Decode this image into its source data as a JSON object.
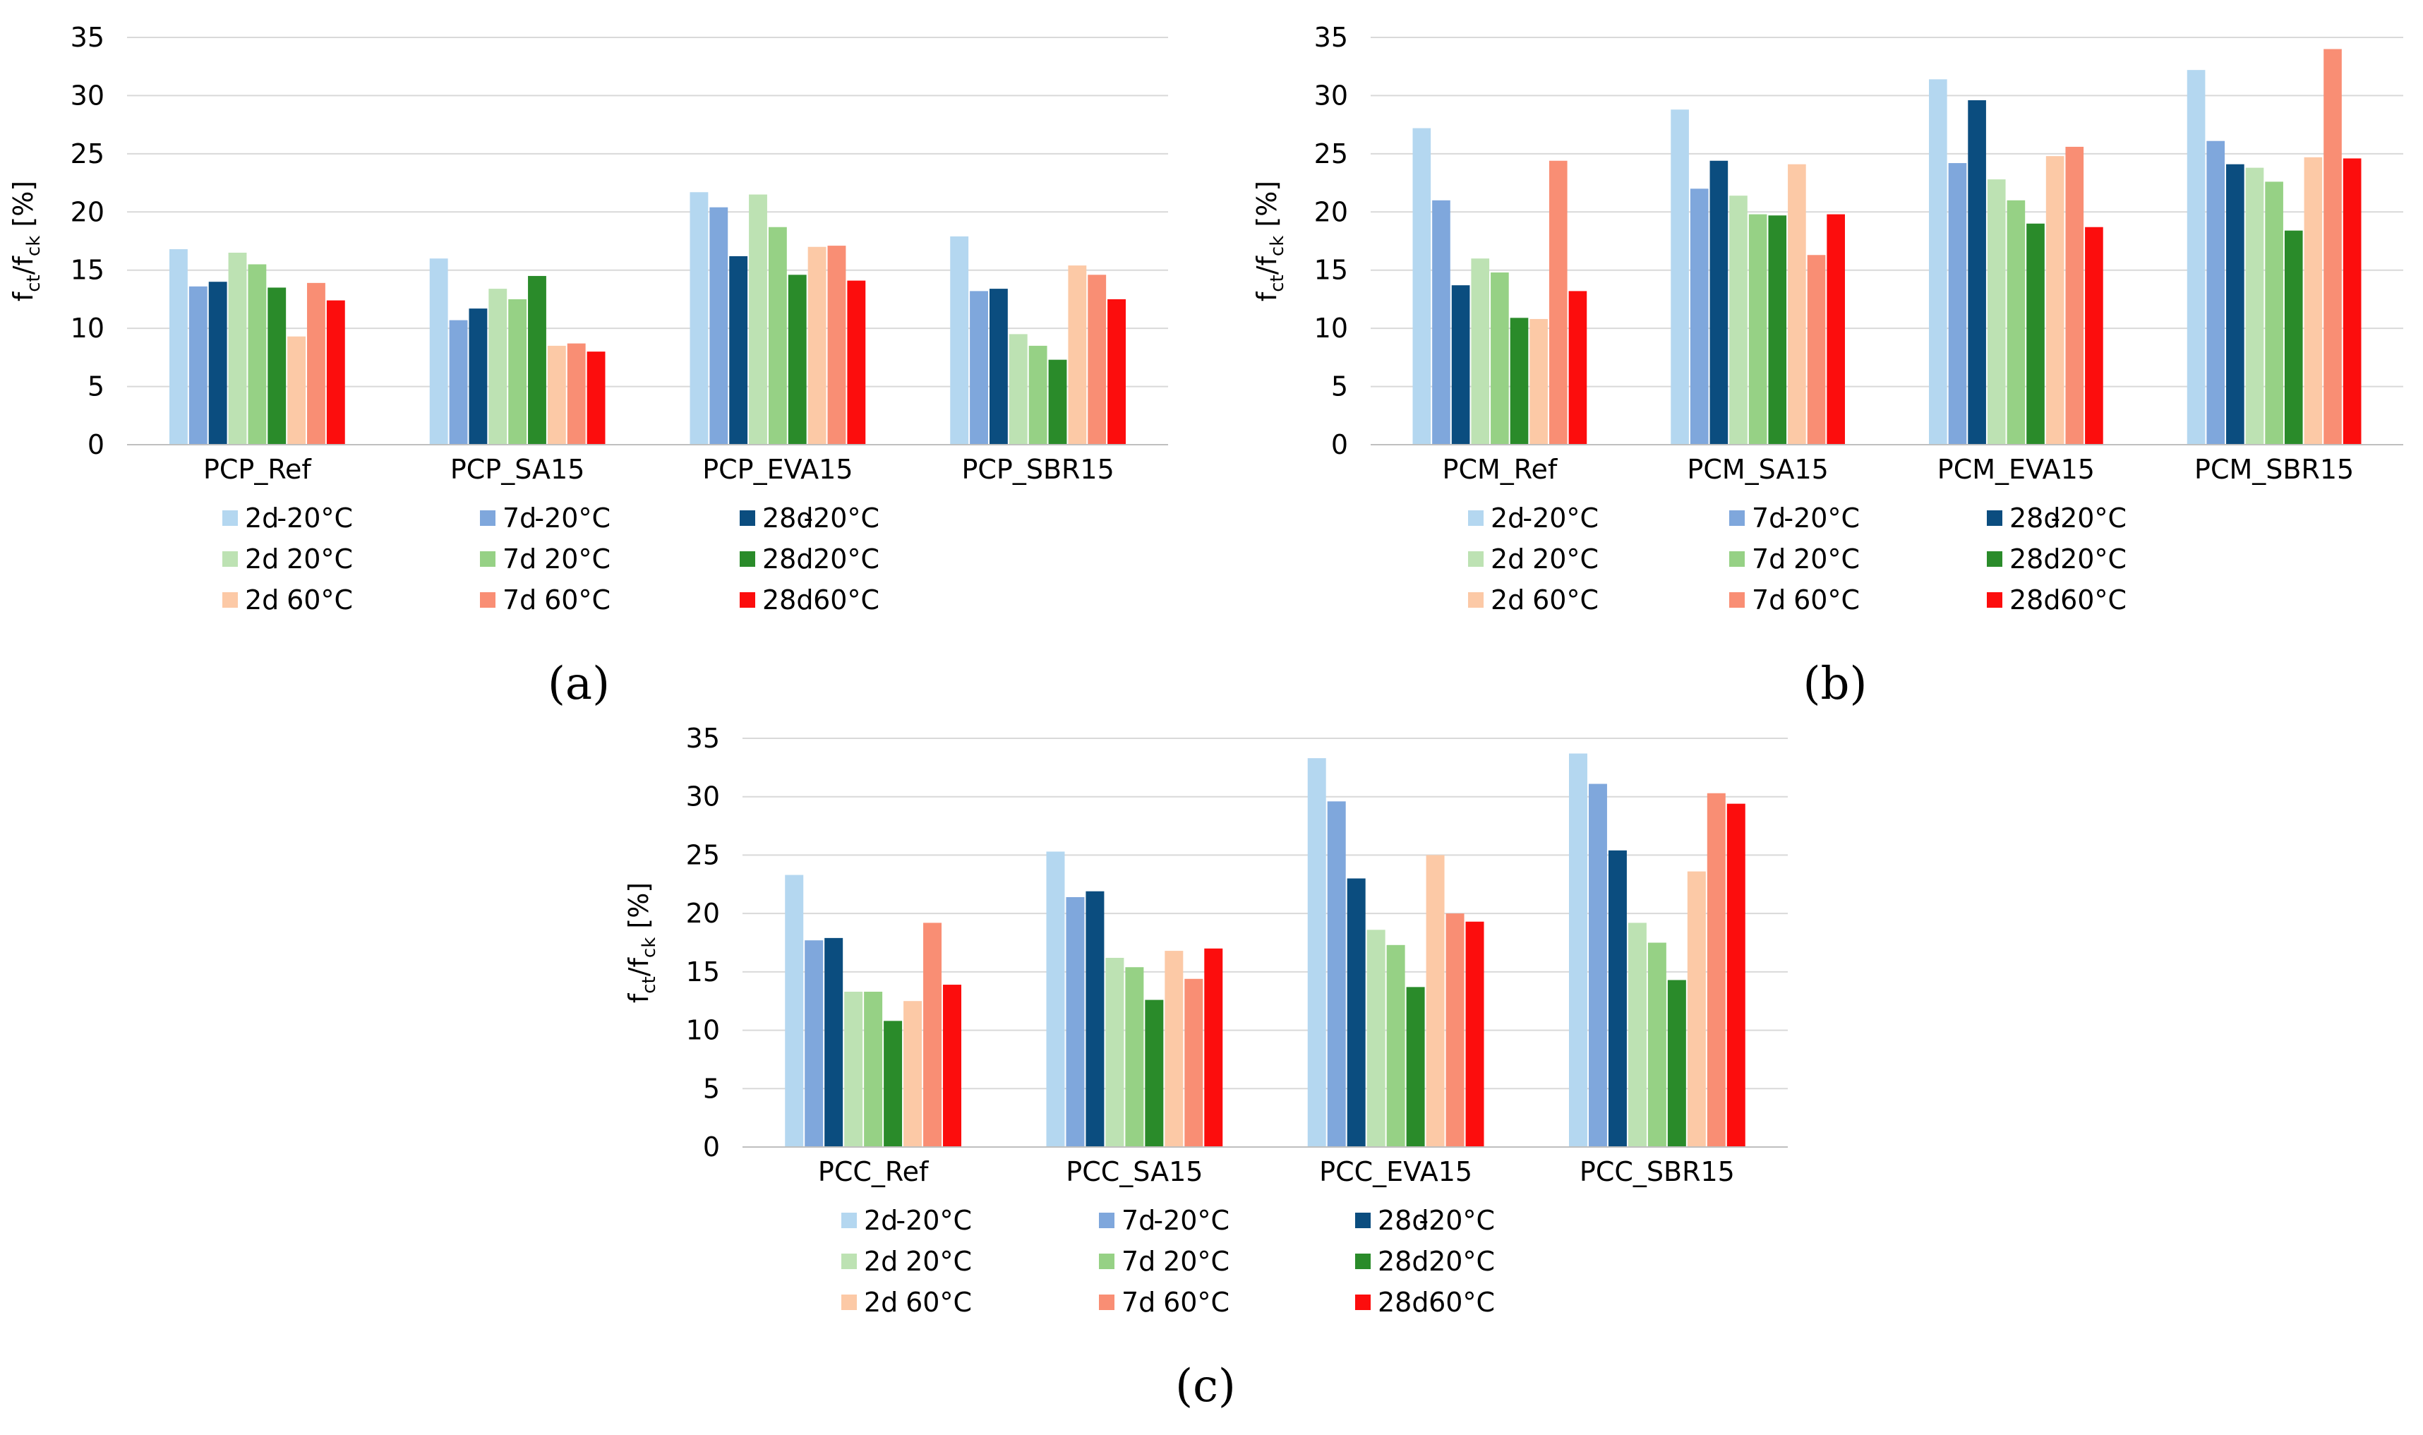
{
  "legend_entries": [
    {
      "age": "2d",
      "temp": "-20°C",
      "color": "#b4d7f0"
    },
    {
      "age": "7d",
      "temp": "-20°C",
      "color": "#7fa7dc"
    },
    {
      "age": "28d",
      "temp": "-20°C",
      "color": "#0b4d7f"
    },
    {
      "age": "2d",
      "temp": "20°C",
      "color": "#bde2b3"
    },
    {
      "age": "7d",
      "temp": "20°C",
      "color": "#96d185"
    },
    {
      "age": "28d",
      "temp": "20°C",
      "color": "#2a8b2a"
    },
    {
      "age": "2d",
      "temp": "60°C",
      "color": "#fcc9a6"
    },
    {
      "age": "7d",
      "temp": "60°C",
      "color": "#f98e74"
    },
    {
      "age": "28d",
      "temp": "60°C",
      "color": "#fc0d0d"
    }
  ],
  "chart_data": [
    {
      "id": "a",
      "type": "bar",
      "panel_label": "(a)",
      "ylabel": "fct/fck [%]",
      "ylabel_main": "f",
      "ylabel_sub1": "ct",
      "ylabel_mid": "/f",
      "ylabel_sub2": "ck",
      "ylabel_unit": " [%]",
      "ylim": [
        0,
        35
      ],
      "yticks": [
        "0",
        "5",
        "10",
        "15",
        "20",
        "25",
        "30",
        "35"
      ],
      "categories": [
        "PCP_Ref",
        "PCP_SA15",
        "PCP_EVA15",
        "PCP_SBR15"
      ],
      "series": [
        {
          "name": "2d -20°C",
          "values": [
            16.8,
            16.0,
            21.7,
            17.9
          ]
        },
        {
          "name": "7d -20°C",
          "values": [
            13.6,
            10.7,
            20.4,
            13.2
          ]
        },
        {
          "name": "28d -20°C",
          "values": [
            14.0,
            11.7,
            16.2,
            13.4
          ]
        },
        {
          "name": "2d 20°C",
          "values": [
            16.5,
            13.4,
            21.5,
            9.5
          ]
        },
        {
          "name": "7d 20°C",
          "values": [
            15.5,
            12.5,
            18.7,
            8.5
          ]
        },
        {
          "name": "28d 20°C",
          "values": [
            13.5,
            14.5,
            14.6,
            7.3
          ]
        },
        {
          "name": "2d 60°C",
          "values": [
            9.3,
            8.5,
            17.0,
            15.4
          ]
        },
        {
          "name": "7d 60°C",
          "values": [
            13.9,
            8.7,
            17.1,
            14.6
          ]
        },
        {
          "name": "28d 60°C",
          "values": [
            12.4,
            8.0,
            14.1,
            12.5
          ]
        }
      ]
    },
    {
      "id": "b",
      "type": "bar",
      "panel_label": "(b)",
      "ylabel": "fct/fck [%]",
      "ylabel_main": "f",
      "ylabel_sub1": "ct",
      "ylabel_mid": "/f",
      "ylabel_sub2": "ck",
      "ylabel_unit": " [%]",
      "ylim": [
        0,
        35
      ],
      "yticks": [
        "0",
        "5",
        "10",
        "15",
        "20",
        "25",
        "30",
        "35"
      ],
      "categories": [
        "PCM_Ref",
        "PCM_SA15",
        "PCM_EVA15",
        "PCM_SBR15"
      ],
      "series": [
        {
          "name": "2d -20°C",
          "values": [
            27.2,
            28.8,
            31.4,
            32.2
          ]
        },
        {
          "name": "7d -20°C",
          "values": [
            21.0,
            22.0,
            24.2,
            26.1
          ]
        },
        {
          "name": "28d -20°C",
          "values": [
            13.7,
            24.4,
            29.6,
            24.1
          ]
        },
        {
          "name": "2d 20°C",
          "values": [
            16.0,
            21.4,
            22.8,
            23.8
          ]
        },
        {
          "name": "7d 20°C",
          "values": [
            14.8,
            19.8,
            21.0,
            22.6
          ]
        },
        {
          "name": "28d 20°C",
          "values": [
            10.9,
            19.7,
            19.0,
            18.4
          ]
        },
        {
          "name": "2d 60°C",
          "values": [
            10.8,
            24.1,
            24.8,
            24.7
          ]
        },
        {
          "name": "7d 60°C",
          "values": [
            24.4,
            16.3,
            25.6,
            34.0
          ]
        },
        {
          "name": "28d 60°C",
          "values": [
            13.2,
            19.8,
            18.7,
            24.6
          ]
        }
      ]
    },
    {
      "id": "c",
      "type": "bar",
      "panel_label": "(c)",
      "ylabel": "fct/fck [%]",
      "ylabel_main": "f",
      "ylabel_sub1": "ct",
      "ylabel_mid": "/f",
      "ylabel_sub2": "ck",
      "ylabel_unit": " [%]",
      "ylim": [
        0,
        35
      ],
      "yticks": [
        "0",
        "5",
        "10",
        "15",
        "20",
        "25",
        "30",
        "35"
      ],
      "categories": [
        "PCC_Ref",
        "PCC_SA15",
        "PCC_EVA15",
        "PCC_SBR15"
      ],
      "series": [
        {
          "name": "2d -20°C",
          "values": [
            23.3,
            25.3,
            33.3,
            33.7
          ]
        },
        {
          "name": "7d -20°C",
          "values": [
            17.7,
            21.4,
            29.6,
            31.1
          ]
        },
        {
          "name": "28d -20°C",
          "values": [
            17.9,
            21.9,
            23.0,
            25.4
          ]
        },
        {
          "name": "2d 20°C",
          "values": [
            13.3,
            16.2,
            18.6,
            19.2
          ]
        },
        {
          "name": "7d 20°C",
          "values": [
            13.3,
            15.4,
            17.3,
            17.5
          ]
        },
        {
          "name": "28d 20°C",
          "values": [
            10.8,
            12.6,
            13.7,
            14.3
          ]
        },
        {
          "name": "2d 60°C",
          "values": [
            12.5,
            16.8,
            25.0,
            23.6
          ]
        },
        {
          "name": "7d 60°C",
          "values": [
            19.2,
            14.4,
            20.0,
            30.3
          ]
        },
        {
          "name": "28d 60°C",
          "values": [
            13.9,
            17.0,
            19.3,
            29.4
          ]
        }
      ]
    }
  ]
}
